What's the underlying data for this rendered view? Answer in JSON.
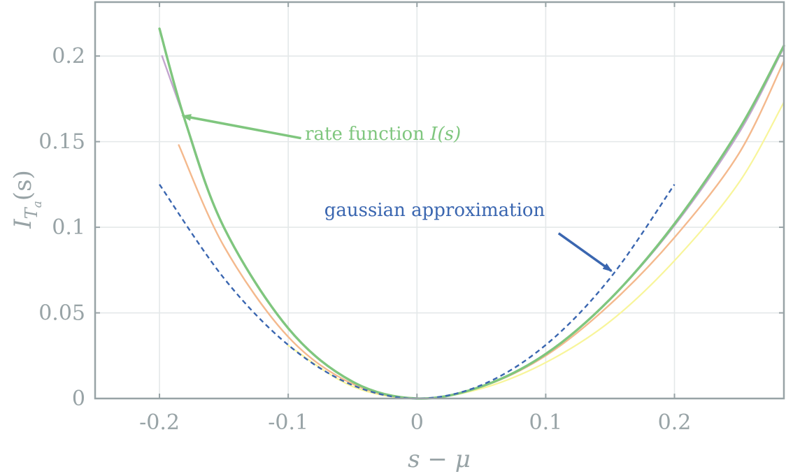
{
  "chart_data": {
    "type": "line",
    "xlabel": "s − μ",
    "ylabel": "I_{T_a}(s)",
    "xlim": [
      -0.25,
      0.285
    ],
    "ylim": [
      0,
      0.2315
    ],
    "grid": true,
    "x_ticks": [
      {
        "value": -0.2,
        "label": "-0.2"
      },
      {
        "value": -0.1,
        "label": "-0.1"
      },
      {
        "value": 0,
        "label": "0"
      },
      {
        "value": 0.1,
        "label": "0.1"
      },
      {
        "value": 0.2,
        "label": "0.2"
      }
    ],
    "y_ticks": [
      {
        "value": 0,
        "label": "0"
      },
      {
        "value": 0.05,
        "label": "0.05"
      },
      {
        "value": 0.1,
        "label": "0.1"
      },
      {
        "value": 0.15,
        "label": "0.15"
      },
      {
        "value": 0.2,
        "label": "0.2"
      }
    ],
    "series": [
      {
        "color": "#f8f59a",
        "dash": false,
        "width": 2.2,
        "x": [
          -0.1,
          -0.05,
          0,
          0.05,
          0.1,
          0.15,
          0.2,
          0.25,
          0.285
        ],
        "y": [
          0.031,
          0.007,
          0.0,
          0.0058,
          0.021,
          0.045,
          0.0805,
          0.126,
          0.173
        ]
      },
      {
        "color": "#f4b98d",
        "dash": false,
        "width": 2.4,
        "x": [
          -0.185,
          -0.15,
          -0.1,
          -0.05,
          0,
          0.05,
          0.1,
          0.15,
          0.2,
          0.25,
          0.285
        ],
        "y": [
          0.148,
          0.089,
          0.036,
          0.0085,
          0.0,
          0.0068,
          0.025,
          0.055,
          0.094,
          0.143,
          0.197
        ]
      },
      {
        "color": "#c3a5cf",
        "dash": false,
        "width": 2.4,
        "x": [
          -0.198,
          -0.18,
          -0.15,
          -0.1,
          -0.05,
          0,
          0.05,
          0.1,
          0.15,
          0.2,
          0.25,
          0.285
        ],
        "y": [
          0.2,
          0.162,
          0.1,
          0.041,
          0.0098,
          0.0,
          0.007,
          0.026,
          0.058,
          0.101,
          0.155,
          0.205
        ]
      },
      {
        "color": "#7fc67e",
        "dash": false,
        "width": 3.4,
        "x": [
          -0.2,
          -0.18,
          -0.15,
          -0.1,
          -0.05,
          0,
          0.05,
          0.1,
          0.15,
          0.2,
          0.25,
          0.285
        ],
        "y": [
          0.216,
          0.162,
          0.1,
          0.041,
          0.0098,
          0.0,
          0.007,
          0.026,
          0.058,
          0.102,
          0.157,
          0.206
        ]
      },
      {
        "color": "#3a66b0",
        "dash": true,
        "width": 2.4,
        "x": [
          -0.2,
          -0.15,
          -0.1,
          -0.05,
          0,
          0.05,
          0.1,
          0.15,
          0.2
        ],
        "y": [
          0.125,
          0.0703,
          0.03125,
          0.0078,
          0.0,
          0.0078,
          0.03125,
          0.0703,
          0.125
        ]
      }
    ],
    "annotations": [
      {
        "text": "rate function ",
        "math": "I(s)",
        "color": "#7fc67e",
        "text_x": -0.087,
        "text_y": 0.151,
        "arrow_tail": [
          -0.09,
          0.152
        ],
        "arrow_head": [
          -0.182,
          0.165
        ]
      },
      {
        "text": "gaussian approximation",
        "math": "",
        "color": "#3a66b0",
        "text_x": -0.072,
        "text_y": 0.1065,
        "arrow_tail": [
          0.11,
          0.0965
        ],
        "arrow_head": [
          0.151,
          0.0745
        ]
      }
    ]
  }
}
